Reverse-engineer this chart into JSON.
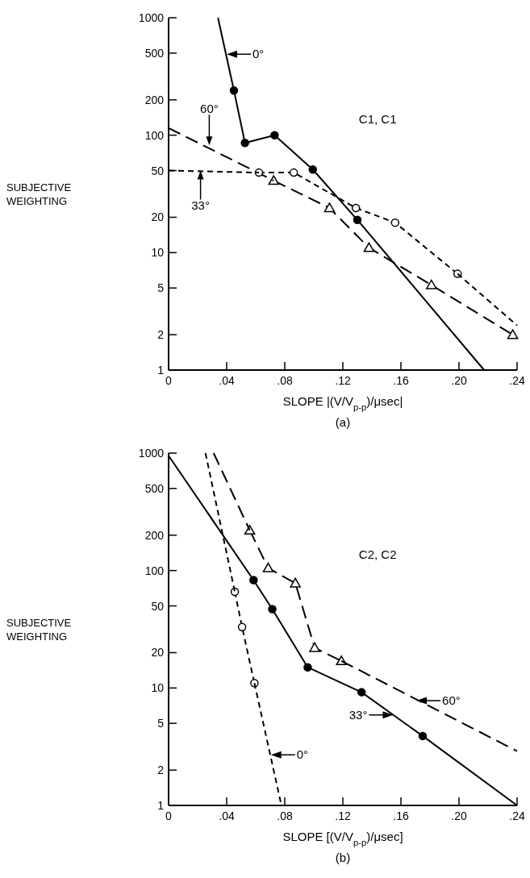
{
  "chart_data": [
    {
      "type": "line",
      "title": "(a)",
      "xlabel": "SLOPE |(V/V$_{p-p}$)/μsec|",
      "ylabel": "SUBJECTIVE WEIGHTING",
      "log": "y",
      "grid": false,
      "xlim": [
        0,
        0.24
      ],
      "xticks": [
        0,
        {
          "value": 0.04,
          "label": ".04"
        },
        {
          "value": 0.08,
          "label": ".08"
        },
        {
          "value": 0.12,
          "label": ".12"
        },
        {
          "value": 0.16,
          "label": ".16"
        },
        {
          "value": 0.2,
          "label": ".20"
        },
        {
          "value": 0.24,
          "label": ".24"
        }
      ],
      "ylim": [
        1,
        1000
      ],
      "yticks": [
        1,
        2,
        5,
        10,
        20,
        50,
        100,
        200,
        500,
        1000
      ],
      "series": [
        {
          "color": "#000000",
          "line_style": "solid",
          "marker": "circle",
          "x": [
            0.045,
            0.0526,
            0.073,
            0.0993,
            0.13
          ],
          "values": [
            240,
            86,
            100,
            51,
            19
          ]
        },
        {
          "color": "#000000",
          "line_style": "solid",
          "marker": "none",
          "x": [
            0.034,
            0.045
          ],
          "values": [
            1000,
            240
          ]
        },
        {
          "color": "#000000",
          "line_style": "solid",
          "marker": "none",
          "x": [
            0.13,
            0.2173
          ],
          "values": [
            19,
            1
          ]
        },
        {
          "color": "#000000",
          "line_style": "dashed",
          "marker": "triangle",
          "x": [
            0.0724,
            0.1108,
            0.138,
            0.181,
            0.237
          ],
          "values": [
            41,
            24,
            11,
            5.3,
            2
          ]
        },
        {
          "color": "#000000",
          "line_style": "dashed",
          "marker": "none",
          "x": [
            0,
            0.0724
          ],
          "values": [
            115,
            41
          ]
        },
        {
          "color": "#000000",
          "line_style": "dotted",
          "marker": "circle",
          "x": [
            0.0622,
            0.0862,
            0.129,
            0.156,
            0.199
          ],
          "values": [
            48,
            48,
            24,
            18,
            6.6
          ]
        },
        {
          "color": "#000000",
          "line_style": "dotted",
          "marker": "none",
          "x": [
            0,
            0.0622
          ],
          "values": [
            50,
            48
          ]
        },
        {
          "color": "#000000",
          "line_style": "dotted",
          "marker": "none",
          "x": [
            0.199,
            0.24
          ],
          "values": [
            6.6,
            2.4
          ]
        }
      ],
      "annotations": [
        {
          "text": "0°",
          "x": 0.04,
          "y": 490
        },
        {
          "text": "60°",
          "x": 0.028,
          "y": 82
        },
        {
          "text": "33°",
          "x": 0.022,
          "y": 50
        },
        "C1, C1"
      ]
    },
    {
      "type": "line",
      "title": "(b)",
      "xlabel": "SLOPE [(V/V$_{p-p}$)/μsec]",
      "ylabel": "SUBJECTIVE WEIGHTING",
      "log": "y",
      "grid": false,
      "xlim": [
        0,
        0.24
      ],
      "xticks": [
        0,
        {
          "value": 0.04,
          "label": ".04"
        },
        {
          "value": 0.08,
          "label": ".08"
        },
        {
          "value": 0.12,
          "label": ".12"
        },
        {
          "value": 0.16,
          "label": ".16"
        },
        {
          "value": 0.2,
          "label": ".20"
        },
        {
          "value": 0.24,
          "label": ".24"
        }
      ],
      "ylim": [
        1,
        1000
      ],
      "yticks": [
        1,
        2,
        5,
        10,
        20,
        50,
        100,
        200,
        500,
        1000
      ],
      "series": [
        {
          "color": "#000000",
          "line_style": "dotted",
          "marker": "circle",
          "x": [
            0.0456,
            0.0506,
            0.0591
          ],
          "values": [
            66,
            33,
            11
          ]
        },
        {
          "color": "#000000",
          "line_style": "dotted",
          "marker": "none",
          "x": [
            0.0254,
            0.0456
          ],
          "values": [
            1000,
            66
          ]
        },
        {
          "color": "#000000",
          "line_style": "dotted",
          "marker": "none",
          "x": [
            0.0591,
            0.0777
          ],
          "values": [
            11,
            1
          ]
        },
        {
          "color": "#000000",
          "line_style": "solid",
          "marker": "circle",
          "x": [
            0.0585,
            0.0714,
            0.0958,
            0.1329,
            0.175
          ],
          "values": [
            83,
            47,
            15,
            9.2,
            3.9
          ]
        },
        {
          "color": "#000000",
          "line_style": "solid",
          "marker": "none",
          "x": [
            0,
            0.0585
          ],
          "values": [
            950,
            83
          ]
        },
        {
          "color": "#000000",
          "line_style": "solid",
          "marker": "none",
          "x": [
            0.175,
            0.24
          ],
          "values": [
            3.9,
            1
          ]
        },
        {
          "color": "#000000",
          "line_style": "dashed",
          "marker": "triangle",
          "x": [
            0.0559,
            0.0686,
            0.0873,
            0.1006,
            0.119
          ],
          "values": [
            220,
            105,
            78,
            22,
            17
          ]
        },
        {
          "color": "#000000",
          "line_style": "dashed",
          "marker": "none",
          "x": [
            0.031,
            0.0559
          ],
          "values": [
            1000,
            220
          ]
        },
        {
          "color": "#000000",
          "line_style": "dashed",
          "marker": "none",
          "x": [
            0.119,
            0.24
          ],
          "values": [
            17,
            2.9
          ]
        }
      ],
      "annotations": [
        {
          "text": "60°",
          "x": 0.1706,
          "y": 7.8
        },
        {
          "text": "33°",
          "x": 0.1547,
          "y": 5.9
        },
        {
          "text": "0°",
          "x": 0.0704,
          "y": 2.7
        },
        "C2, C2"
      ]
    }
  ]
}
